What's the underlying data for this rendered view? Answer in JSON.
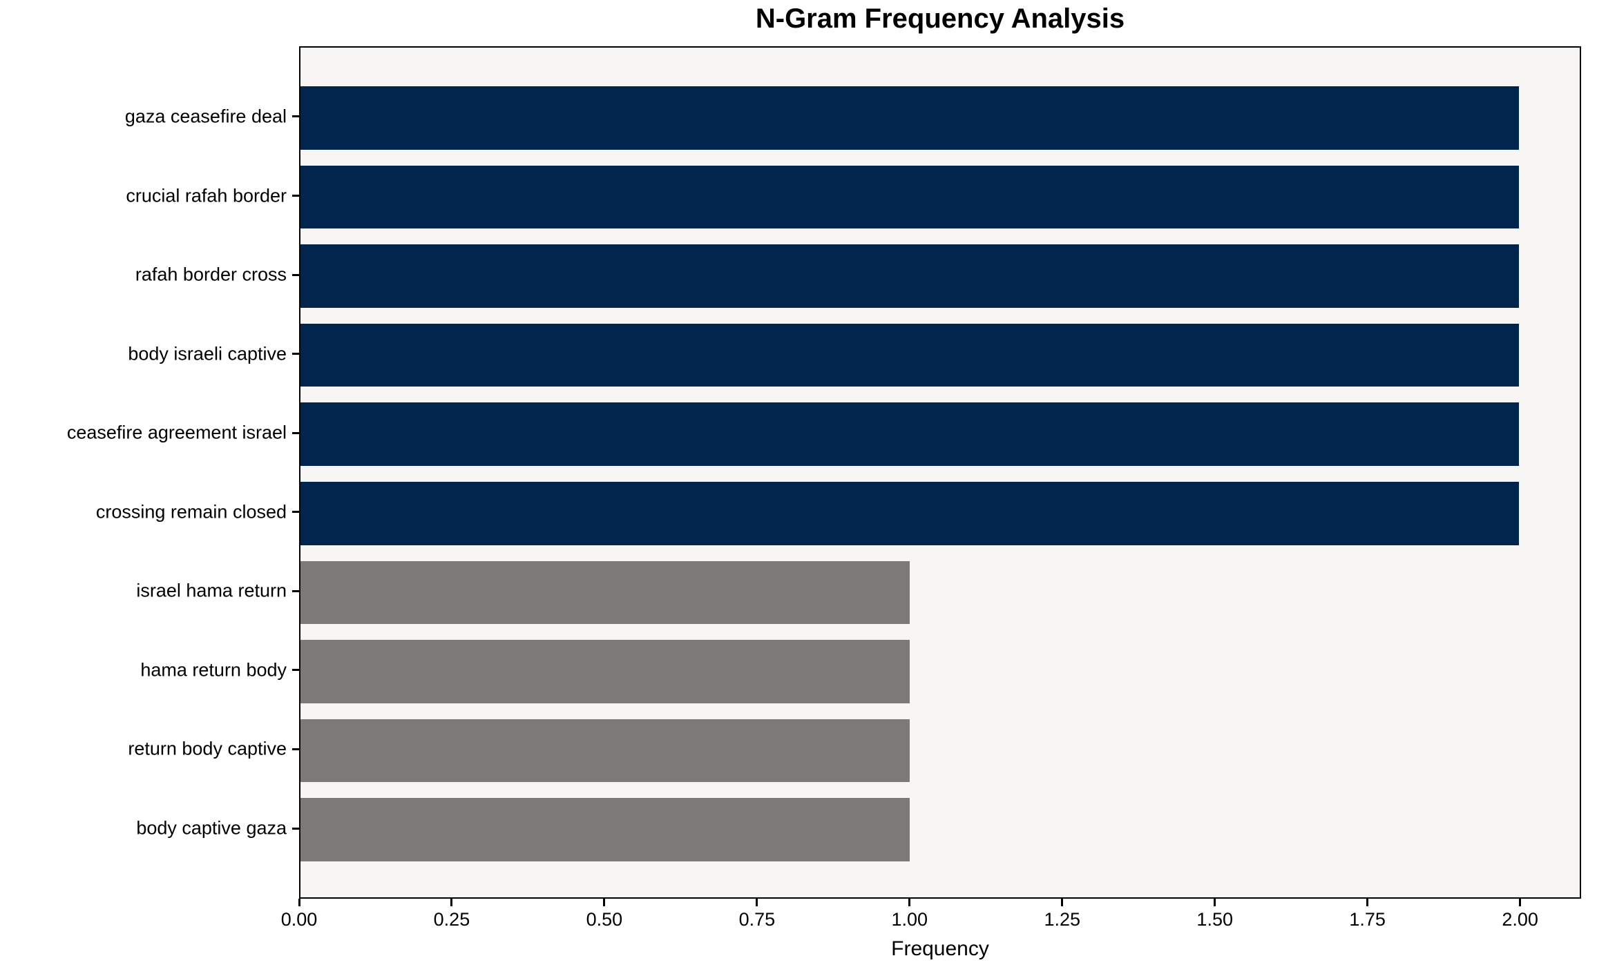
{
  "chart_data": {
    "type": "bar",
    "orientation": "horizontal",
    "title": "N-Gram Frequency Analysis",
    "xlabel": "Frequency",
    "ylabel": "",
    "categories": [
      "gaza ceasefire deal",
      "crucial rafah border",
      "rafah border cross",
      "body israeli captive",
      "ceasefire agreement israel",
      "crossing remain closed",
      "israel hama return",
      "hama return body",
      "return body captive",
      "body captive gaza"
    ],
    "values": [
      2,
      2,
      2,
      2,
      2,
      2,
      1,
      1,
      1,
      1
    ],
    "bar_colors": [
      "#02254d",
      "#02254d",
      "#02254d",
      "#02254d",
      "#02254d",
      "#02254d",
      "#7b7a77",
      "#7b7a77",
      "#7b7a77",
      "#7b7a77"
    ],
    "xlim": [
      0,
      2.1
    ],
    "x_ticks": [
      "0.00",
      "0.25",
      "0.50",
      "0.75",
      "1.00",
      "1.25",
      "1.50",
      "1.75",
      "2.00"
    ],
    "x_tick_values": [
      0,
      0.25,
      0.5,
      0.75,
      1.0,
      1.25,
      1.5,
      1.75,
      2.0
    ],
    "grid": false,
    "legend": false,
    "plot_bg": "#f7f6f4",
    "figure_bg": "#ffffff",
    "spine_color": "#000000"
  }
}
